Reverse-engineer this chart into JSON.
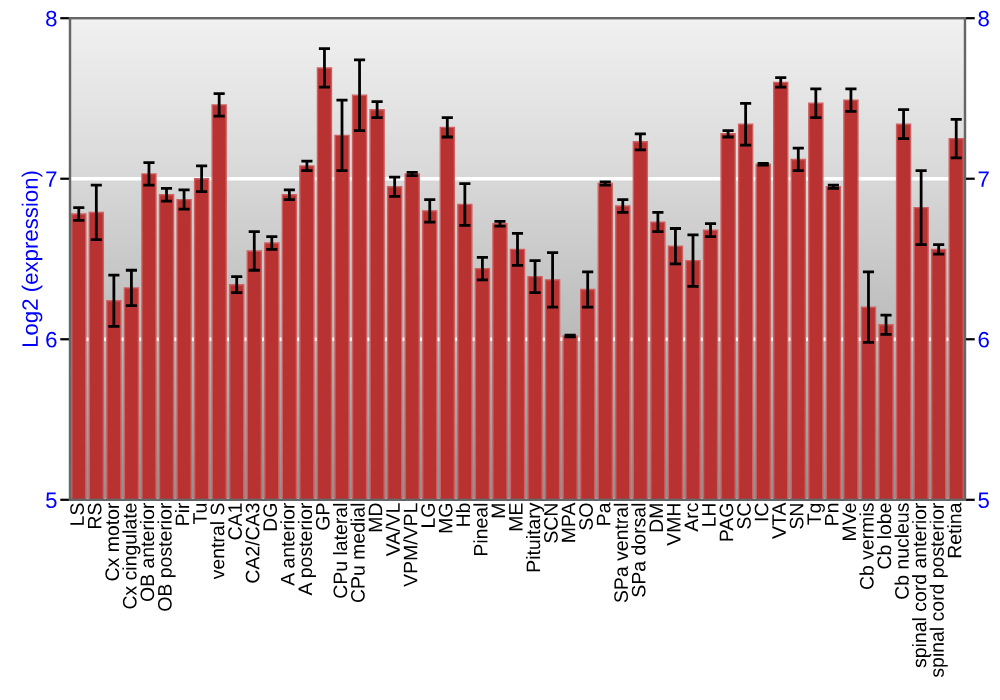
{
  "chart_data": {
    "type": "bar",
    "ylabel": "Log2 (expression)",
    "categories": [
      "LS",
      "RS",
      "Cx motor",
      "Cx cingulate",
      "OB anterior",
      "OB posterior",
      "Pir",
      "Tu",
      "ventral S",
      "CA1",
      "CA2/CA3",
      "DG",
      "A anterior",
      "A posterior",
      "GP",
      "CPu lateral",
      "CPu medial",
      "MD",
      "VA/VL",
      "VPM/VPL",
      "LG",
      "MG",
      "Hb",
      "Pineal",
      "M",
      "ME",
      "Pituitary",
      "SCN",
      "MPA",
      "SO",
      "Pa",
      "SPa ventral",
      "SPa dorsal",
      "DM",
      "VMH",
      "Arc",
      "LH",
      "PAG",
      "SC",
      "IC",
      "VTA",
      "SN",
      "Tg",
      "Pn",
      "MVe",
      "Cb vermis",
      "Cb lobe",
      "Cb nucleus",
      "spinal cord anterior",
      "spinal cord posterior",
      "Retina"
    ],
    "values": [
      6.78,
      6.79,
      6.24,
      6.32,
      7.03,
      6.9,
      6.87,
      7.0,
      7.46,
      6.34,
      6.55,
      6.6,
      6.9,
      7.08,
      7.69,
      7.27,
      7.52,
      7.43,
      6.95,
      7.03,
      6.8,
      7.32,
      6.84,
      6.44,
      6.72,
      6.56,
      6.39,
      6.37,
      6.02,
      6.31,
      6.97,
      6.83,
      7.23,
      6.73,
      6.58,
      6.49,
      6.68,
      7.28,
      7.34,
      7.09,
      7.6,
      7.12,
      7.47,
      6.95,
      7.49,
      6.2,
      6.09,
      7.34,
      6.82,
      6.56,
      7.25
    ],
    "errors": [
      0.04,
      0.17,
      0.16,
      0.11,
      0.07,
      0.04,
      0.06,
      0.08,
      0.07,
      0.05,
      0.12,
      0.04,
      0.03,
      0.03,
      0.12,
      0.22,
      0.22,
      0.05,
      0.06,
      0.01,
      0.07,
      0.06,
      0.13,
      0.07,
      0.015,
      0.1,
      0.1,
      0.17,
      0.005,
      0.11,
      0.01,
      0.04,
      0.05,
      0.06,
      0.11,
      0.16,
      0.04,
      0.02,
      0.13,
      0.005,
      0.03,
      0.07,
      0.09,
      0.01,
      0.07,
      0.22,
      0.06,
      0.09,
      0.23,
      0.03,
      0.12
    ],
    "color": "#b83232",
    "ylim": [
      5,
      8
    ],
    "yticks": [
      5,
      6,
      7,
      8
    ],
    "y2lim": [
      5,
      8
    ],
    "y2ticks": [
      5,
      6,
      7,
      8
    ],
    "grid": "y"
  }
}
